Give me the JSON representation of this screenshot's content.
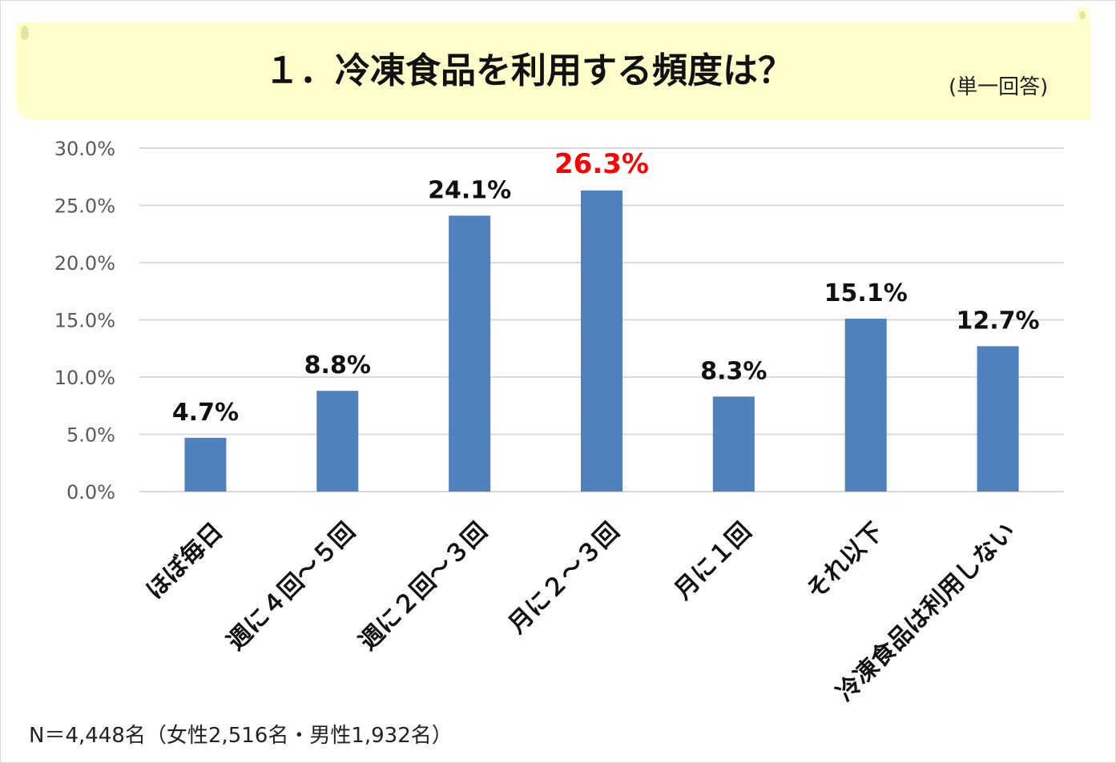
{
  "title": "１．冷凍食品を利用する頻度は？",
  "subtitle": "(単一回答)",
  "footnote": "N＝4,448名（女性2,516名・男性1,932名）",
  "colors": {
    "bar": "#4f81bd",
    "highlight_label": "#ff0000",
    "label": "#111111",
    "gridline": "#d9d9d9",
    "tick_label": "#595959",
    "banner": "#ffffcc"
  },
  "chart_data": {
    "type": "bar",
    "categories": [
      "ほぼ毎日",
      "週に４回～５回",
      "週に２回～３回",
      "月に２～３回",
      "月に１回",
      "それ以下",
      "冷凍食品は利用しない"
    ],
    "values": [
      4.7,
      8.8,
      24.1,
      26.3,
      8.3,
      15.1,
      12.7
    ],
    "data_labels": [
      "4.7%",
      "8.8%",
      "24.1%",
      "26.3%",
      "8.3%",
      "15.1%",
      "12.7%"
    ],
    "highlight_index": 3,
    "ylim": [
      0,
      30
    ],
    "yticks": [
      0,
      5,
      10,
      15,
      20,
      25,
      30
    ],
    "ytick_labels": [
      "0.0%",
      "5.0%",
      "10.0%",
      "15.0%",
      "20.0%",
      "25.0%",
      "30.0%"
    ],
    "grid": true,
    "legend": "none",
    "xlabel": "",
    "ylabel": ""
  }
}
